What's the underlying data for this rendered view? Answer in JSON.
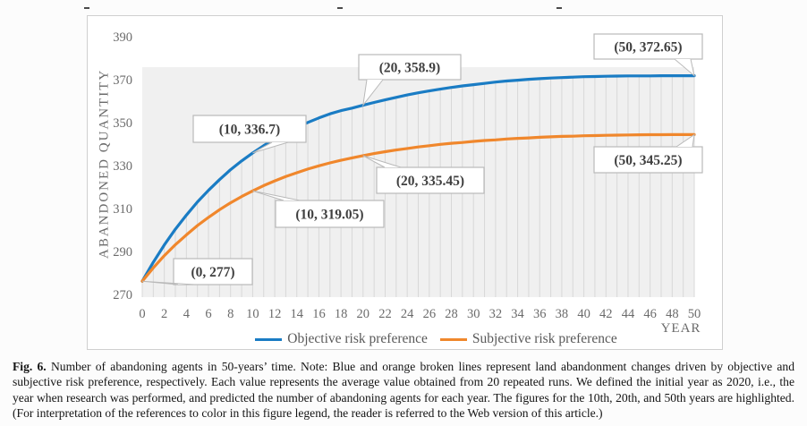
{
  "caption": {
    "lead": "Fig. 6.",
    "body": "Number of abandoning agents in 50-years’ time. Note: Blue and orange broken lines represent land abandonment changes driven by objective and subjective risk preference, respectively. Each value represents the average value obtained from 20 repeated runs. We defined the initial year as 2020, i.e., the year when research was performed, and predicted the number of abandoning agents for each year. The figures for the 10th, 20th, and 50th years are highlighted. (For interpretation of the references to color in this figure legend, the reader is referred to the Web version of this article.)"
  },
  "decorations": {
    "top_dash_count": 3
  },
  "chart_data": {
    "type": "line",
    "title": "",
    "xlabel": "YEAR",
    "ylabel": "ABANDONED QUANTITY",
    "xlim": [
      0,
      50
    ],
    "ylim": [
      270,
      390
    ],
    "x_ticks": [
      0,
      2,
      4,
      6,
      8,
      10,
      12,
      14,
      16,
      18,
      20,
      22,
      24,
      26,
      28,
      30,
      32,
      34,
      36,
      38,
      40,
      42,
      44,
      46,
      48,
      50
    ],
    "y_ticks": [
      270,
      290,
      310,
      330,
      350,
      370,
      390
    ],
    "grid": "vertical-drop-lines",
    "legend_position": "bottom",
    "plot_bg": "#f0f0f0",
    "drop_line_color": "#d8d8d8",
    "x": [
      0,
      1,
      2,
      3,
      4,
      5,
      6,
      7,
      8,
      9,
      10,
      11,
      12,
      13,
      14,
      15,
      16,
      17,
      18,
      19,
      20,
      21,
      22,
      23,
      24,
      25,
      26,
      27,
      28,
      29,
      30,
      31,
      32,
      33,
      34,
      35,
      36,
      37,
      38,
      39,
      40,
      41,
      42,
      43,
      44,
      45,
      46,
      47,
      48,
      49,
      50
    ],
    "series": [
      {
        "name": "Objective risk preference",
        "color": "#1a7cc4",
        "values": [
          277,
          285.8,
          293.9,
          301.2,
          307.8,
          313.9,
          319.3,
          324.3,
          328.9,
          333.0,
          336.7,
          340.1,
          343.2,
          346.0,
          348.6,
          350.9,
          353.0,
          354.9,
          356.4,
          357.6,
          358.9,
          360.2,
          361.4,
          362.6,
          363.7,
          364.7,
          365.6,
          366.4,
          367.2,
          367.9,
          368.5,
          369.1,
          369.7,
          370.2,
          370.6,
          371.0,
          371.3,
          371.6,
          371.8,
          372.0,
          372.2,
          372.3,
          372.4,
          372.5,
          372.6,
          372.6,
          372.6,
          372.65,
          372.65,
          372.65,
          372.65
        ]
      },
      {
        "name": "Subjective risk preference",
        "color": "#f0872c",
        "values": [
          277,
          283.2,
          288.9,
          294.0,
          298.6,
          302.9,
          306.7,
          310.3,
          313.5,
          316.4,
          319.05,
          321.5,
          323.7,
          325.7,
          327.5,
          329.2,
          330.7,
          332.1,
          333.3,
          334.4,
          335.45,
          336.4,
          337.3,
          338.1,
          338.8,
          339.5,
          340.1,
          340.7,
          341.2,
          341.6,
          342.1,
          342.5,
          342.8,
          343.2,
          343.5,
          343.7,
          344.0,
          344.2,
          344.4,
          344.5,
          344.7,
          344.8,
          344.9,
          345.0,
          345.1,
          345.15,
          345.2,
          345.2,
          345.25,
          345.25,
          345.25
        ]
      }
    ],
    "annotations": [
      {
        "label": "(0, 277)",
        "x": 0,
        "y": 277,
        "series": "both"
      },
      {
        "label": "(10, 336.7)",
        "x": 10,
        "y": 336.7,
        "series": "objective"
      },
      {
        "label": "(20, 358.9)",
        "x": 20,
        "y": 358.9,
        "series": "objective"
      },
      {
        "label": "(50, 372.65)",
        "x": 50,
        "y": 372.65,
        "series": "objective"
      },
      {
        "label": "(10, 319.05)",
        "x": 10,
        "y": 319.05,
        "series": "subjective"
      },
      {
        "label": "(20, 335.45)",
        "x": 20,
        "y": 335.45,
        "series": "subjective"
      },
      {
        "label": "(50, 345.25)",
        "x": 50,
        "y": 345.25,
        "series": "subjective"
      }
    ]
  }
}
